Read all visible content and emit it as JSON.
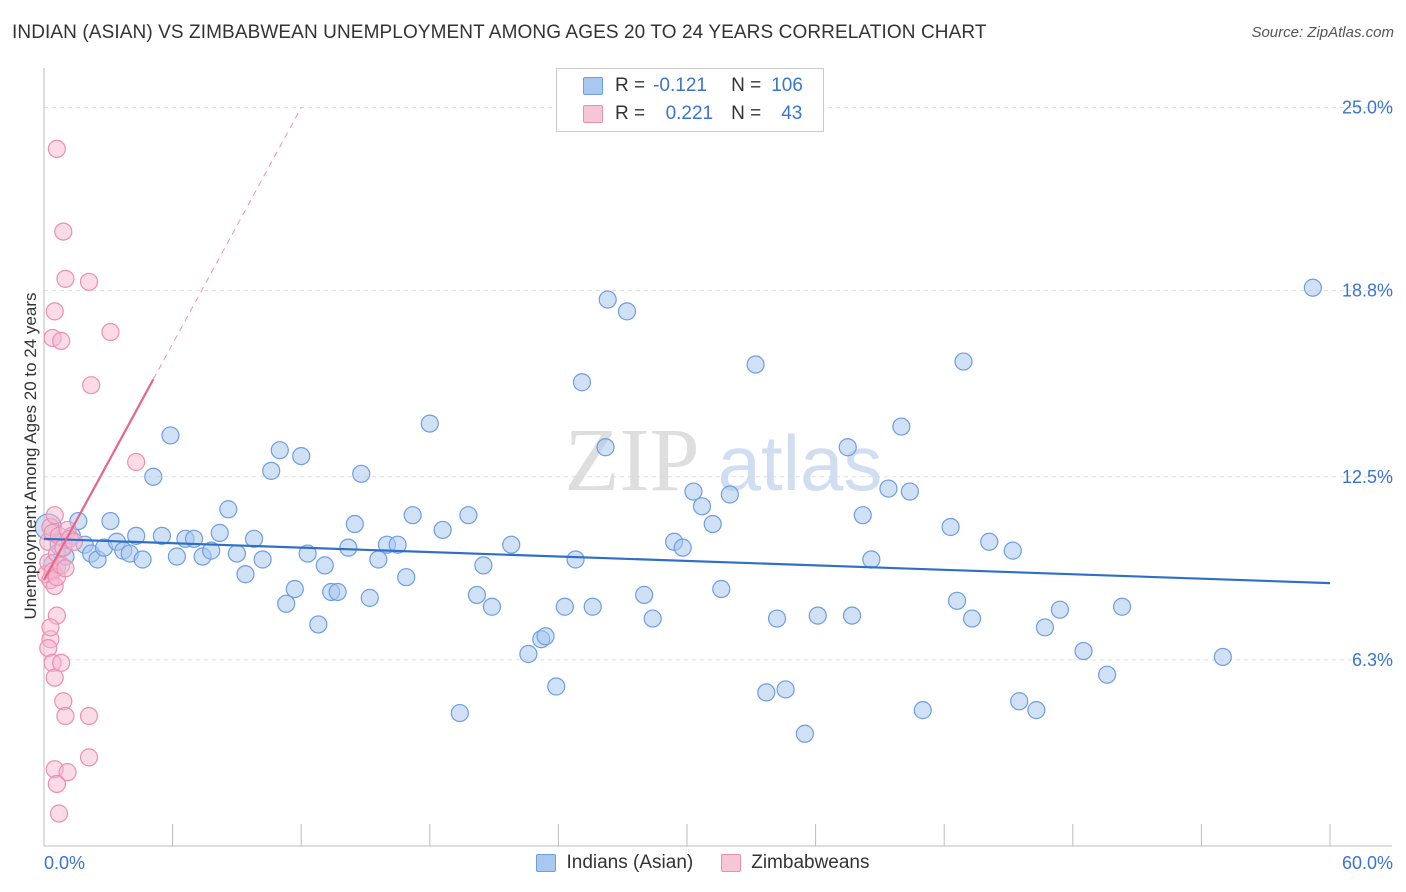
{
  "title": "INDIAN (ASIAN) VS ZIMBABWEAN UNEMPLOYMENT AMONG AGES 20 TO 24 YEARS CORRELATION CHART",
  "source": "Source: ZipAtlas.com",
  "watermark": {
    "zip": "ZIP",
    "atlas": "atlas"
  },
  "legend": {
    "series1": {
      "r_label": "R =",
      "r_value": "-0.121",
      "n_label": "N =",
      "n_value": "106"
    },
    "series2": {
      "r_label": "R =",
      "r_value": "0.221",
      "n_label": "N =",
      "n_value": "43"
    }
  },
  "colors": {
    "blue_fill": "#a9c8ef",
    "blue_stroke": "#6d9ee0",
    "blue_line": "#2f6fc8",
    "pink_fill": "#f5b8cd",
    "pink_stroke": "#eb8fb0",
    "pink_line": "#e6648f",
    "tick_text": "#3a74d1",
    "grid": "#dddddd"
  },
  "chart_data": {
    "type": "scatter",
    "title": "INDIAN (ASIAN) VS ZIMBABWEAN UNEMPLOYMENT AMONG AGES 20 TO 24 YEARS CORRELATION CHART",
    "xlabel": "",
    "ylabel": "Unemployment Among Ages 20 to 24 years",
    "xlim": [
      0,
      60
    ],
    "ylim": [
      0,
      26
    ],
    "x_tick_labels": [
      {
        "value": 0,
        "label": "0.0%"
      },
      {
        "value": 60,
        "label": "60.0%"
      }
    ],
    "y_tick_labels": [
      {
        "value": 6.3,
        "label": "6.3%"
      },
      {
        "value": 12.5,
        "label": "12.5%"
      },
      {
        "value": 18.8,
        "label": "18.8%"
      },
      {
        "value": 25.0,
        "label": "25.0%"
      }
    ],
    "series": [
      {
        "name": "Indians (Asian)",
        "color": "#a9c8ef",
        "trend": {
          "x": [
            0,
            60
          ],
          "y": [
            10.4,
            8.9
          ]
        },
        "points": [
          [
            0.2,
            10.8
          ],
          [
            0.5,
            9.5
          ],
          [
            0.8,
            10.2
          ],
          [
            1.0,
            9.8
          ],
          [
            1.3,
            10.5
          ],
          [
            1.6,
            11.0
          ],
          [
            1.9,
            10.2
          ],
          [
            2.2,
            9.9
          ],
          [
            2.5,
            9.7
          ],
          [
            2.8,
            10.1
          ],
          [
            3.1,
            11.0
          ],
          [
            3.4,
            10.3
          ],
          [
            3.7,
            10.0
          ],
          [
            4.0,
            9.9
          ],
          [
            4.3,
            10.5
          ],
          [
            4.6,
            9.7
          ],
          [
            5.1,
            12.5
          ],
          [
            5.5,
            10.5
          ],
          [
            5.9,
            13.9
          ],
          [
            6.2,
            9.8
          ],
          [
            6.6,
            10.4
          ],
          [
            7.0,
            10.4
          ],
          [
            7.4,
            9.8
          ],
          [
            7.8,
            10.0
          ],
          [
            8.2,
            10.6
          ],
          [
            8.6,
            11.4
          ],
          [
            9.0,
            9.9
          ],
          [
            9.4,
            9.2
          ],
          [
            9.8,
            10.4
          ],
          [
            10.2,
            9.7
          ],
          [
            10.6,
            12.7
          ],
          [
            11.0,
            13.4
          ],
          [
            11.3,
            8.2
          ],
          [
            11.7,
            8.7
          ],
          [
            12.0,
            13.2
          ],
          [
            12.3,
            9.9
          ],
          [
            12.8,
            7.5
          ],
          [
            13.1,
            9.5
          ],
          [
            13.4,
            8.6
          ],
          [
            13.7,
            8.6
          ],
          [
            14.2,
            10.1
          ],
          [
            14.5,
            10.9
          ],
          [
            14.8,
            12.6
          ],
          [
            15.2,
            8.4
          ],
          [
            15.6,
            9.7
          ],
          [
            16.0,
            10.2
          ],
          [
            16.5,
            10.2
          ],
          [
            16.9,
            9.1
          ],
          [
            17.2,
            11.2
          ],
          [
            18.0,
            14.3
          ],
          [
            18.6,
            10.7
          ],
          [
            19.4,
            4.5
          ],
          [
            19.8,
            11.2
          ],
          [
            20.2,
            8.5
          ],
          [
            20.5,
            9.5
          ],
          [
            20.9,
            8.1
          ],
          [
            21.8,
            10.2
          ],
          [
            22.6,
            6.5
          ],
          [
            23.2,
            7.0
          ],
          [
            23.4,
            7.1
          ],
          [
            23.9,
            5.4
          ],
          [
            24.3,
            8.1
          ],
          [
            24.8,
            9.7
          ],
          [
            25.1,
            15.7
          ],
          [
            25.6,
            8.1
          ],
          [
            26.2,
            13.5
          ],
          [
            26.3,
            18.5
          ],
          [
            27.2,
            18.1
          ],
          [
            28.0,
            8.5
          ],
          [
            28.4,
            7.7
          ],
          [
            29.4,
            10.3
          ],
          [
            29.8,
            10.1
          ],
          [
            30.3,
            12.0
          ],
          [
            30.7,
            11.5
          ],
          [
            31.2,
            10.9
          ],
          [
            31.6,
            8.7
          ],
          [
            32.0,
            11.9
          ],
          [
            33.2,
            16.3
          ],
          [
            33.7,
            5.2
          ],
          [
            34.2,
            7.7
          ],
          [
            34.6,
            5.3
          ],
          [
            35.5,
            3.8
          ],
          [
            36.1,
            7.8
          ],
          [
            37.5,
            13.5
          ],
          [
            37.7,
            7.8
          ],
          [
            38.2,
            11.2
          ],
          [
            38.6,
            9.7
          ],
          [
            39.4,
            12.1
          ],
          [
            40.0,
            14.2
          ],
          [
            40.4,
            12.0
          ],
          [
            41.0,
            4.6
          ],
          [
            42.3,
            10.8
          ],
          [
            42.6,
            8.3
          ],
          [
            42.9,
            16.4
          ],
          [
            43.3,
            7.7
          ],
          [
            44.1,
            10.3
          ],
          [
            45.2,
            10.0
          ],
          [
            45.5,
            4.9
          ],
          [
            46.3,
            4.6
          ],
          [
            46.7,
            7.4
          ],
          [
            47.4,
            8.0
          ],
          [
            48.5,
            6.6
          ],
          [
            49.6,
            5.8
          ],
          [
            50.3,
            8.1
          ],
          [
            55.0,
            6.4
          ],
          [
            59.2,
            18.9
          ]
        ]
      },
      {
        "name": "Zimbabweans",
        "color": "#f5b8cd",
        "trend": {
          "x": [
            0,
            5.1
          ],
          "y": [
            9.0,
            15.8
          ]
        },
        "trend_extended": {
          "x": [
            5.1,
            12.0
          ],
          "y": [
            15.8,
            25.0
          ]
        },
        "points": [
          [
            0.1,
            9.2
          ],
          [
            0.2,
            9.6
          ],
          [
            0.2,
            10.3
          ],
          [
            0.3,
            10.8
          ],
          [
            0.3,
            9.0
          ],
          [
            0.4,
            10.6
          ],
          [
            0.4,
            9.3
          ],
          [
            0.5,
            8.8
          ],
          [
            0.5,
            11.2
          ],
          [
            0.6,
            9.9
          ],
          [
            0.6,
            9.1
          ],
          [
            0.7,
            10.5
          ],
          [
            0.8,
            9.5
          ],
          [
            0.9,
            10.1
          ],
          [
            1.0,
            9.4
          ],
          [
            1.1,
            10.7
          ],
          [
            0.3,
            7.0
          ],
          [
            0.2,
            6.7
          ],
          [
            0.4,
            6.2
          ],
          [
            0.6,
            7.8
          ],
          [
            0.3,
            7.4
          ],
          [
            0.5,
            5.7
          ],
          [
            0.8,
            6.2
          ],
          [
            0.9,
            4.9
          ],
          [
            1.0,
            4.4
          ],
          [
            2.1,
            4.4
          ],
          [
            0.5,
            2.6
          ],
          [
            1.1,
            2.5
          ],
          [
            0.6,
            2.1
          ],
          [
            0.7,
            1.1
          ],
          [
            2.1,
            3.0
          ],
          [
            0.4,
            17.2
          ],
          [
            0.5,
            18.1
          ],
          [
            0.8,
            17.1
          ],
          [
            1.0,
            19.2
          ],
          [
            2.1,
            19.1
          ],
          [
            3.1,
            17.4
          ],
          [
            2.2,
            15.6
          ],
          [
            4.3,
            13.0
          ],
          [
            0.6,
            23.6
          ],
          [
            0.9,
            20.8
          ],
          [
            1.2,
            10.4
          ],
          [
            1.4,
            10.3
          ]
        ]
      }
    ]
  },
  "bottom_legend": {
    "item1": "Indians (Asian)",
    "item2": "Zimbabweans"
  }
}
